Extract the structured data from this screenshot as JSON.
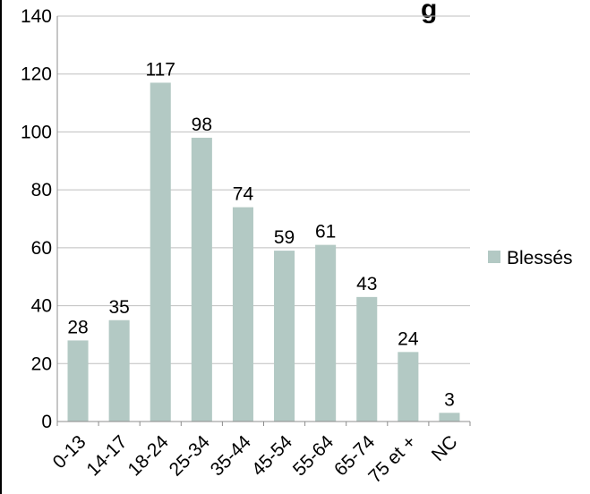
{
  "chart_data": {
    "type": "bar",
    "title": "",
    "title_visible_fragment": "g",
    "categories": [
      "0-13",
      "14-17",
      "18-24",
      "25-34",
      "35-44",
      "45-54",
      "55-64",
      "65-74",
      "75 et +",
      "NC"
    ],
    "series": [
      {
        "name": "Blessés",
        "values": [
          28,
          35,
          117,
          98,
          74,
          59,
          61,
          43,
          24,
          3
        ],
        "color": "#b3c9c4"
      }
    ],
    "ylim": [
      0,
      140
    ],
    "yticks": [
      0,
      20,
      40,
      60,
      80,
      100,
      120,
      140
    ],
    "xlabel": "",
    "ylabel": "",
    "grid": true,
    "legend_position": "right",
    "colors": {
      "bar": "#b3c9c4",
      "grid": "#bfbfbf",
      "axis": "#8c8c8c",
      "text": "#000000"
    }
  }
}
